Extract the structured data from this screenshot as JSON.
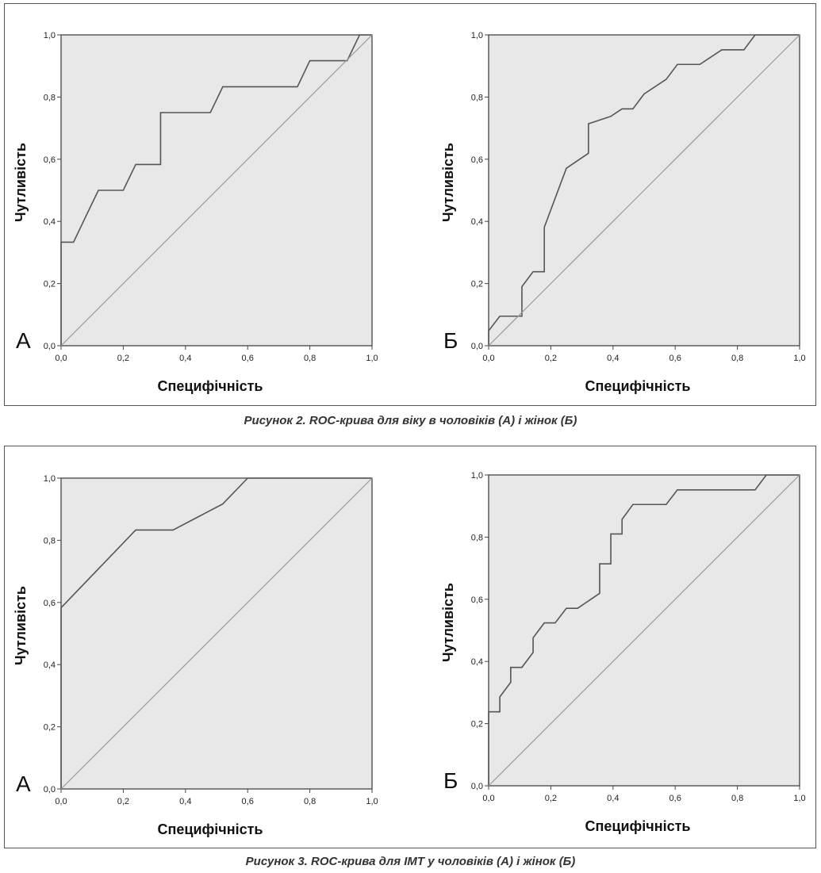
{
  "figures": [
    {
      "caption": "Рисунок 2. ROC-крива для віку в чоловіків (А) і жінок (Б)"
    },
    {
      "caption": "Рисунок 3. ROC-крива для ІМТ у чоловіків (А) і жінок (Б)"
    }
  ],
  "chart_data": [
    {
      "type": "line",
      "panel_label": "А",
      "xlabel": "Специфічність",
      "ylabel": "Чутливість",
      "xlim": [
        0,
        1
      ],
      "ylim": [
        0,
        1
      ],
      "x_ticks": [
        "0,0",
        "0,2",
        "0,4",
        "0,6",
        "0,8",
        "1,0"
      ],
      "y_ticks": [
        "0,0",
        "0,2",
        "0,4",
        "0,6",
        "0,8",
        "1,0"
      ],
      "grid": false,
      "background": "#e8e8e8",
      "series": [
        {
          "x": [
            0,
            0,
            0.04,
            0.08,
            0.12,
            0.2,
            0.24,
            0.32,
            0.32,
            0.48,
            0.52,
            0.76,
            0.8,
            0.92,
            0.96,
            1.0
          ],
          "y": [
            0,
            0.333,
            0.333,
            0.417,
            0.5,
            0.5,
            0.583,
            0.583,
            0.75,
            0.75,
            0.833,
            0.833,
            0.917,
            0.917,
            1.0,
            1.0
          ],
          "color": "#555555"
        },
        {
          "x": [
            0,
            1
          ],
          "y": [
            0,
            1
          ],
          "color": "#9a9a9a"
        }
      ]
    },
    {
      "type": "line",
      "panel_label": "Б",
      "xlabel": "Специфічність",
      "ylabel": "Чутливість",
      "xlim": [
        0,
        1
      ],
      "ylim": [
        0,
        1
      ],
      "x_ticks": [
        "0,0",
        "0,2",
        "0,4",
        "0,6",
        "0,8",
        "1,0"
      ],
      "y_ticks": [
        "0,0",
        "0,2",
        "0,4",
        "0,6",
        "0,8",
        "1,0"
      ],
      "grid": false,
      "background": "#e8e8e8",
      "series": [
        {
          "x": [
            0,
            0,
            0.036,
            0.107,
            0.107,
            0.143,
            0.143,
            0.179,
            0.179,
            0.25,
            0.321,
            0.321,
            0.393,
            0.429,
            0.464,
            0.5,
            0.571,
            0.607,
            0.679,
            0.75,
            0.821,
            0.857,
            1.0
          ],
          "y": [
            0,
            0.048,
            0.095,
            0.095,
            0.19,
            0.238,
            0.238,
            0.238,
            0.381,
            0.571,
            0.619,
            0.714,
            0.738,
            0.762,
            0.762,
            0.81,
            0.857,
            0.905,
            0.905,
            0.952,
            0.952,
            1.0,
            1.0
          ],
          "color": "#555555"
        },
        {
          "x": [
            0,
            1
          ],
          "y": [
            0,
            1
          ],
          "color": "#9a9a9a"
        }
      ]
    },
    {
      "type": "line",
      "panel_label": "А",
      "xlabel": "Специфічність",
      "ylabel": "Чутливість",
      "xlim": [
        0,
        1
      ],
      "ylim": [
        0,
        1
      ],
      "x_ticks": [
        "0,0",
        "0,2",
        "0,4",
        "0,6",
        "0,8",
        "1,0"
      ],
      "y_ticks": [
        "0,0",
        "0,2",
        "0,4",
        "0,6",
        "0,8",
        "1,0"
      ],
      "grid": false,
      "background": "#e8e8e8",
      "series": [
        {
          "x": [
            0,
            0,
            0.24,
            0.36,
            0.44,
            0.52,
            0.6,
            1.0
          ],
          "y": [
            0,
            0.583,
            0.833,
            0.833,
            0.875,
            0.917,
            1.0,
            1.0
          ],
          "color": "#555555"
        },
        {
          "x": [
            0,
            1
          ],
          "y": [
            0,
            1
          ],
          "color": "#9a9a9a"
        }
      ]
    },
    {
      "type": "line",
      "panel_label": "Б",
      "xlabel": "Специфічність",
      "ylabel": "Чутливість",
      "xlim": [
        0,
        1
      ],
      "ylim": [
        0,
        1
      ],
      "x_ticks": [
        "0,0",
        "0,2",
        "0,4",
        "0,6",
        "0,8",
        "1,0"
      ],
      "y_ticks": [
        "0,0",
        "0,2",
        "0,4",
        "0,6",
        "0,8",
        "1,0"
      ],
      "grid": false,
      "background": "#e8e8e8",
      "series": [
        {
          "x": [
            0,
            0,
            0.036,
            0.036,
            0.071,
            0.071,
            0.107,
            0.143,
            0.143,
            0.179,
            0.214,
            0.25,
            0.286,
            0.357,
            0.357,
            0.393,
            0.393,
            0.429,
            0.429,
            0.464,
            0.571,
            0.607,
            0.857,
            0.893,
            1.0
          ],
          "y": [
            0,
            0.238,
            0.238,
            0.286,
            0.333,
            0.381,
            0.381,
            0.429,
            0.476,
            0.524,
            0.524,
            0.571,
            0.571,
            0.619,
            0.714,
            0.714,
            0.81,
            0.81,
            0.857,
            0.905,
            0.905,
            0.952,
            0.952,
            1.0,
            1.0
          ],
          "color": "#555555"
        },
        {
          "x": [
            0,
            1
          ],
          "y": [
            0,
            1
          ],
          "color": "#9a9a9a"
        }
      ]
    }
  ]
}
